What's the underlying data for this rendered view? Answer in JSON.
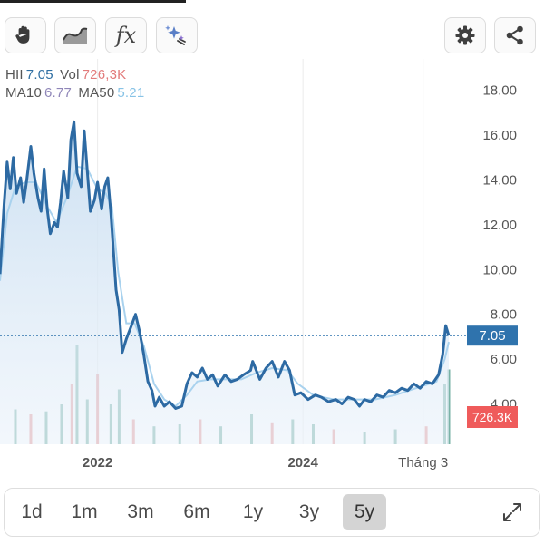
{
  "toolbar": {
    "left_tools": [
      {
        "icon": "hand-icon"
      },
      {
        "icon": "area-line-icon"
      },
      {
        "icon": "function-icon",
        "label": "fx"
      },
      {
        "icon": "sparkle-icon"
      }
    ],
    "right_tools": [
      {
        "icon": "gear-icon"
      },
      {
        "icon": "share-icon"
      }
    ]
  },
  "legend": {
    "symbol": "HII",
    "price": "7.05",
    "vol_label": "Vol",
    "vol": "726,3K",
    "ma10_label": "MA10",
    "ma10": "6.77",
    "ma50_label": "MA50",
    "ma50": "5.21"
  },
  "colors": {
    "price_line": "#2d6aa3",
    "area_fill_top": "#c9def1",
    "ma10_line": "#a9d2ee",
    "price_badge": "#2f73ad",
    "volume_badge": "#ef5b5b",
    "volume_up": "#4e9a8a",
    "volume_down": "#e07a7a"
  },
  "range_selector": {
    "buttons": [
      "1d",
      "1m",
      "3m",
      "6m",
      "1y",
      "3y",
      "5y"
    ],
    "active": "5y"
  },
  "chart_data": {
    "type": "line",
    "symbol": "HII",
    "y_ticks": [
      "18.00",
      "16.00",
      "14.00",
      "12.00",
      "10.00",
      "8.00",
      "6.00",
      "4.00"
    ],
    "ylim": [
      2.2,
      19.0
    ],
    "x_tick_labels": [
      {
        "label": "2022",
        "x": 2022.0
      },
      {
        "label": "2024",
        "x": 2024.0
      },
      {
        "label": "Tháng 3",
        "x": 2025.17
      }
    ],
    "xlim": [
      2021.05,
      2025.57
    ],
    "grid": "vertical",
    "current_price_label": "7.05",
    "current_price": 7.05,
    "current_volume_label": "726.3K",
    "series": [
      {
        "name": "HII",
        "points": [
          [
            2021.05,
            9.8
          ],
          [
            2021.09,
            12.9
          ],
          [
            2021.12,
            14.8
          ],
          [
            2021.15,
            13.6
          ],
          [
            2021.18,
            15.0
          ],
          [
            2021.21,
            13.4
          ],
          [
            2021.25,
            14.1
          ],
          [
            2021.28,
            13.0
          ],
          [
            2021.31,
            14.0
          ],
          [
            2021.35,
            15.5
          ],
          [
            2021.38,
            14.3
          ],
          [
            2021.42,
            13.2
          ],
          [
            2021.45,
            12.6
          ],
          [
            2021.48,
            14.5
          ],
          [
            2021.51,
            12.7
          ],
          [
            2021.54,
            11.6
          ],
          [
            2021.58,
            12.1
          ],
          [
            2021.61,
            11.9
          ],
          [
            2021.64,
            13.0
          ],
          [
            2021.67,
            14.4
          ],
          [
            2021.71,
            13.2
          ],
          [
            2021.74,
            15.8
          ],
          [
            2021.77,
            16.6
          ],
          [
            2021.8,
            14.3
          ],
          [
            2021.84,
            13.7
          ],
          [
            2021.87,
            16.2
          ],
          [
            2021.9,
            14.4
          ],
          [
            2021.93,
            12.6
          ],
          [
            2021.97,
            13.1
          ],
          [
            2022.0,
            13.9
          ],
          [
            2022.04,
            12.7
          ],
          [
            2022.07,
            13.7
          ],
          [
            2022.1,
            14.1
          ],
          [
            2022.13,
            12.5
          ],
          [
            2022.16,
            10.5
          ],
          [
            2022.18,
            9.1
          ],
          [
            2022.21,
            8.2
          ],
          [
            2022.24,
            6.3
          ],
          [
            2022.28,
            6.9
          ],
          [
            2022.33,
            7.5
          ],
          [
            2022.37,
            8.0
          ],
          [
            2022.41,
            7.2
          ],
          [
            2022.45,
            6.2
          ],
          [
            2022.49,
            5.0
          ],
          [
            2022.53,
            4.6
          ],
          [
            2022.56,
            3.9
          ],
          [
            2022.6,
            4.3
          ],
          [
            2022.65,
            3.9
          ],
          [
            2022.7,
            4.1
          ],
          [
            2022.76,
            3.8
          ],
          [
            2022.82,
            3.9
          ],
          [
            2022.87,
            4.9
          ],
          [
            2022.92,
            5.4
          ],
          [
            2022.97,
            5.2
          ],
          [
            2023.02,
            5.6
          ],
          [
            2023.07,
            5.1
          ],
          [
            2023.12,
            5.3
          ],
          [
            2023.17,
            4.8
          ],
          [
            2023.24,
            5.3
          ],
          [
            2023.3,
            5.0
          ],
          [
            2023.36,
            5.1
          ],
          [
            2023.42,
            5.3
          ],
          [
            2023.49,
            5.5
          ],
          [
            2023.51,
            5.9
          ],
          [
            2023.58,
            5.1
          ],
          [
            2023.64,
            5.6
          ],
          [
            2023.7,
            5.9
          ],
          [
            2023.76,
            5.2
          ],
          [
            2023.82,
            5.9
          ],
          [
            2023.87,
            5.5
          ],
          [
            2023.92,
            4.4
          ],
          [
            2023.98,
            4.5
          ],
          [
            2024.05,
            4.2
          ],
          [
            2024.12,
            4.4
          ],
          [
            2024.18,
            4.3
          ],
          [
            2024.25,
            4.1
          ],
          [
            2024.32,
            4.2
          ],
          [
            2024.38,
            4.0
          ],
          [
            2024.44,
            4.3
          ],
          [
            2024.5,
            4.2
          ],
          [
            2024.55,
            3.9
          ],
          [
            2024.6,
            4.2
          ],
          [
            2024.66,
            4.1
          ],
          [
            2024.72,
            4.4
          ],
          [
            2024.78,
            4.3
          ],
          [
            2024.84,
            4.6
          ],
          [
            2024.9,
            4.5
          ],
          [
            2024.96,
            4.7
          ],
          [
            2025.02,
            4.6
          ],
          [
            2025.08,
            4.9
          ],
          [
            2025.14,
            4.7
          ],
          [
            2025.2,
            5.0
          ],
          [
            2025.26,
            4.9
          ],
          [
            2025.32,
            5.3
          ],
          [
            2025.36,
            6.2
          ],
          [
            2025.39,
            7.5
          ],
          [
            2025.42,
            7.05
          ]
        ]
      },
      {
        "name": "MA10",
        "points": [
          [
            2021.05,
            9.5
          ],
          [
            2021.12,
            12.5
          ],
          [
            2021.2,
            13.7
          ],
          [
            2021.3,
            13.9
          ],
          [
            2021.4,
            13.9
          ],
          [
            2021.5,
            12.9
          ],
          [
            2021.6,
            12.1
          ],
          [
            2021.7,
            13.2
          ],
          [
            2021.8,
            14.6
          ],
          [
            2021.9,
            14.5
          ],
          [
            2022.0,
            13.6
          ],
          [
            2022.08,
            13.4
          ],
          [
            2022.14,
            12.8
          ],
          [
            2022.2,
            9.9
          ],
          [
            2022.28,
            7.6
          ],
          [
            2022.36,
            7.6
          ],
          [
            2022.45,
            6.6
          ],
          [
            2022.55,
            4.9
          ],
          [
            2022.65,
            4.2
          ],
          [
            2022.76,
            3.9
          ],
          [
            2022.87,
            4.4
          ],
          [
            2022.97,
            5.0
          ],
          [
            2023.1,
            5.1
          ],
          [
            2023.25,
            5.1
          ],
          [
            2023.4,
            5.1
          ],
          [
            2023.55,
            5.4
          ],
          [
            2023.7,
            5.6
          ],
          [
            2023.85,
            5.5
          ],
          [
            2023.95,
            4.9
          ],
          [
            2024.1,
            4.4
          ],
          [
            2024.3,
            4.2
          ],
          [
            2024.5,
            4.2
          ],
          [
            2024.7,
            4.2
          ],
          [
            2024.9,
            4.4
          ],
          [
            2025.1,
            4.7
          ],
          [
            2025.3,
            5.0
          ],
          [
            2025.38,
            6.0
          ],
          [
            2025.42,
            6.77
          ]
        ]
      }
    ],
    "volume_bars": [
      [
        2021.2,
        0.35
      ],
      [
        2021.35,
        0.3
      ],
      [
        2021.5,
        0.33
      ],
      [
        2021.65,
        0.4
      ],
      [
        2021.75,
        0.6
      ],
      [
        2021.8,
        1.0
      ],
      [
        2021.9,
        0.45
      ],
      [
        2022.0,
        0.7
      ],
      [
        2022.13,
        0.4
      ],
      [
        2022.21,
        0.55
      ],
      [
        2022.35,
        0.25
      ],
      [
        2022.55,
        0.18
      ],
      [
        2022.8,
        0.2
      ],
      [
        2023.0,
        0.25
      ],
      [
        2023.2,
        0.18
      ],
      [
        2023.5,
        0.3
      ],
      [
        2023.7,
        0.22
      ],
      [
        2023.9,
        0.25
      ],
      [
        2024.1,
        0.2
      ],
      [
        2024.3,
        0.15
      ],
      [
        2024.6,
        0.12
      ],
      [
        2024.9,
        0.15
      ],
      [
        2025.2,
        0.18
      ],
      [
        2025.38,
        0.6
      ],
      [
        2025.42,
        0.75
      ]
    ]
  }
}
